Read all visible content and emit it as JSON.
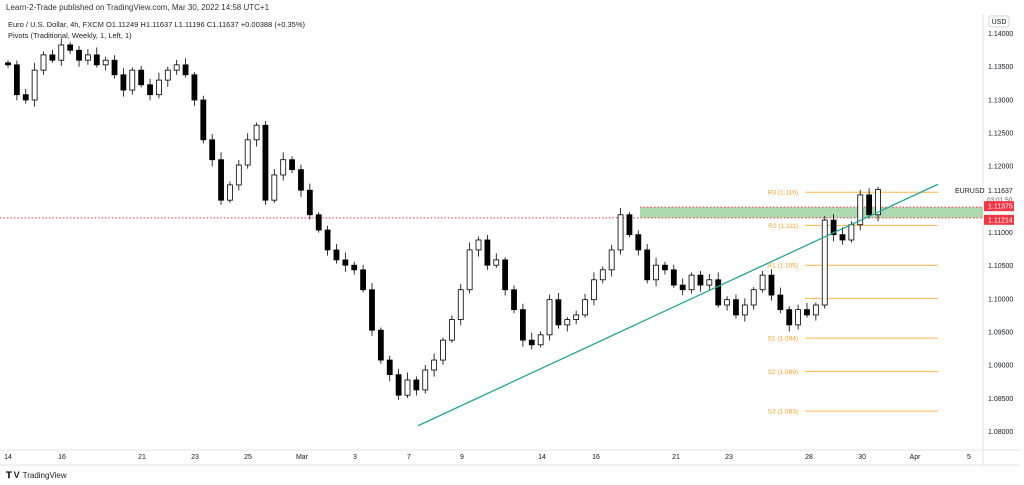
{
  "header": {
    "published": "Learn-2-Trade published on TradingView.com, Mar 30, 2022 14:58 UTC+1",
    "symbol_line": "Euro / U.S. Dollar, 4h, FXCM  O1.11249  H1.11637  L1.11196  C1.11637  +0.00388 (+0.35%)",
    "indicator_line": "Pivots (Traditional, Weekly, 1, Left, 1)"
  },
  "footer": {
    "logo_text": "TradingView"
  },
  "colors": {
    "up": "#ffffff",
    "down": "#000000",
    "candle_border": "#000000",
    "trendline": "#26a69a",
    "zone": "#a5d6a7",
    "pivot": "#ffb74d",
    "pivot_label": "#f7a12a",
    "price_line": "#f23645"
  },
  "chart_data": {
    "type": "candlestick",
    "symbol": "EURUSD",
    "currency": "USD",
    "timeframe": "4h",
    "ylim": [
      1.0775,
      1.1425
    ],
    "y_ticks": [
      "1.14000",
      "1.13500",
      "1.13000",
      "1.12500",
      "1.12000",
      "1.11000",
      "1.10500",
      "1.10000",
      "1.09500",
      "1.09000",
      "1.08500",
      "1.08000"
    ],
    "y_tick_values": [
      1.14,
      1.135,
      1.13,
      1.125,
      1.12,
      1.11,
      1.105,
      1.1,
      1.095,
      1.09,
      1.085,
      1.08
    ],
    "x_ticks": [
      "14",
      "16",
      "21",
      "23",
      "25",
      "Mar",
      "3",
      "7",
      "9",
      "14",
      "16",
      "21",
      "23",
      "28",
      "30",
      "Apr",
      "5"
    ],
    "first_open": 1.1355,
    "closes": [
      1.1352,
      1.1307,
      1.1299,
      1.1344,
      1.1367,
      1.1359,
      1.1382,
      1.1374,
      1.1359,
      1.1367,
      1.1352,
      1.1359,
      1.1337,
      1.1314,
      1.1344,
      1.1322,
      1.1307,
      1.1329,
      1.1344,
      1.1352,
      1.1337,
      1.1299,
      1.1239,
      1.1209,
      1.1148,
      1.1171,
      1.1201,
      1.1239,
      1.1261,
      1.1148,
      1.1186,
      1.1209,
      1.1194,
      1.1163,
      1.1126,
      1.1103,
      1.1073,
      1.1058,
      1.105,
      1.1043,
      1.1013,
      1.0952,
      1.0907,
      1.0885,
      1.0854,
      1.0877,
      1.0862,
      1.0892,
      1.0907,
      1.0937,
      1.0968,
      1.1013,
      1.1073,
      1.1088,
      1.105,
      1.1058,
      1.1013,
      1.0983,
      1.0937,
      1.093,
      1.0945,
      1.0998,
      1.096,
      1.0968,
      1.0975,
      1.0998,
      1.1028,
      1.1043,
      1.1073,
      1.1126,
      1.1096,
      1.1073,
      1.1028,
      1.105,
      1.1043,
      1.102,
      1.1013,
      1.1035,
      1.102,
      1.1028,
      1.099,
      1.0998,
      1.0975,
      1.099,
      1.1013,
      1.1035,
      1.1005,
      1.0983,
      1.096,
      1.0983,
      1.0975,
      1.099,
      1.1118,
      1.1096,
      1.1088,
      1.1111,
      1.1156,
      1.1126,
      1.1164
    ],
    "last_price": "1.11637",
    "countdown": "03:01:50",
    "price_lines": [
      {
        "value": 1.11375,
        "label": "1.11375"
      },
      {
        "value": 1.11214,
        "label": "1.11214"
      }
    ],
    "zone": [
      1.11214,
      1.11375
    ],
    "trendline": {
      "start_date": "Mar 7",
      "start_price": 1.0808,
      "end_price": 1.1172
    },
    "pivots": [
      {
        "name": "R3",
        "value": 1.116,
        "label": "R3 (1.116)"
      },
      {
        "name": "R2",
        "value": 1.111,
        "label": "R2 (1.111)"
      },
      {
        "name": "R1",
        "value": 1.105,
        "label": "R1 (1.105)"
      },
      {
        "name": "P",
        "value": 1.1,
        "label": ""
      },
      {
        "name": "S1",
        "value": 1.094,
        "label": "S1 (1.094)"
      },
      {
        "name": "S2",
        "value": 1.089,
        "label": "S2 (1.089)"
      },
      {
        "name": "S3",
        "value": 1.083,
        "label": "S3 (1.083)"
      }
    ]
  }
}
